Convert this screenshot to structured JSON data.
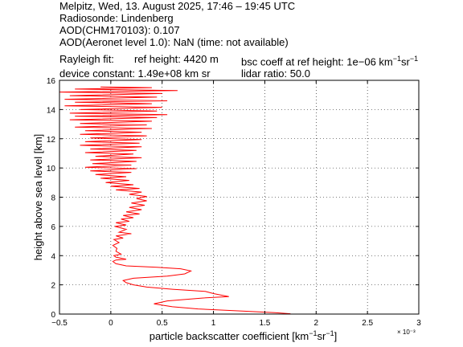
{
  "header": {
    "line1": "Melpitz, Wed, 13. August 2025, 17:46 – 19:45 UTC",
    "line2": "Radiosonde: Lindenberg",
    "line3": "AOD(CHM170103): 0.107",
    "line4": "AOD(Aeronet level 1.0): NaN   (time: not available)",
    "rayleigh_label": "Rayleigh fit:",
    "ref_height": "ref height: 4420 m",
    "bsc_coeff_prefix": "bsc coeff at ref height: 1e−06 km",
    "bsc_coeff_sup1": "−1",
    "bsc_coeff_sr": "sr",
    "bsc_coeff_sup2": "−1",
    "device_constant": "device constant: 1.49e+08 km sr",
    "lidar_ratio": "lidar ratio: 50.0"
  },
  "chart_data": {
    "type": "line",
    "xlabel_prefix": "particle backscatter coefficient [km",
    "xlabel_sup1": "−1",
    "xlabel_sr": "sr",
    "xlabel_sup2": "−1",
    "xlabel_suffix": "]",
    "ylabel": "height above sea level [km]",
    "x_exponent_label": "× 10⁻³",
    "xlim": [
      -0.5,
      3
    ],
    "ylim": [
      0,
      16
    ],
    "xticks": [
      -0.5,
      0,
      0.5,
      1,
      1.5,
      2,
      2.5,
      3
    ],
    "xtick_labels": [
      "−0.5",
      "0",
      "0.5",
      "1",
      "1.5",
      "2",
      "2.5",
      "3"
    ],
    "yticks": [
      0,
      2,
      4,
      6,
      8,
      10,
      12,
      14,
      16
    ],
    "ytick_labels": [
      "0",
      "2",
      "4",
      "6",
      "8",
      "10",
      "12",
      "14",
      "16"
    ],
    "grid": true,
    "series": [
      {
        "color": "#ff0000",
        "points": [
          [
            1.75,
            0.02
          ],
          [
            1.6,
            0.1
          ],
          [
            1.3,
            0.2
          ],
          [
            0.85,
            0.35
          ],
          [
            0.6,
            0.5
          ],
          [
            0.42,
            0.7
          ],
          [
            0.55,
            0.9
          ],
          [
            0.9,
            1.1
          ],
          [
            1.15,
            1.2
          ],
          [
            1.0,
            1.4
          ],
          [
            0.92,
            1.55
          ],
          [
            0.6,
            1.7
          ],
          [
            0.35,
            1.85
          ],
          [
            0.22,
            2.0
          ],
          [
            0.15,
            2.15
          ],
          [
            0.12,
            2.3
          ],
          [
            0.22,
            2.45
          ],
          [
            0.55,
            2.6
          ],
          [
            0.72,
            2.75
          ],
          [
            0.78,
            2.95
          ],
          [
            0.68,
            3.1
          ],
          [
            0.45,
            3.2
          ],
          [
            0.15,
            3.3
          ],
          [
            0.05,
            3.45
          ],
          [
            0.02,
            3.6
          ],
          [
            0.05,
            3.7
          ],
          [
            0.15,
            3.75
          ],
          [
            0.05,
            3.9
          ],
          [
            0.03,
            4.0
          ],
          [
            0.1,
            4.1
          ],
          [
            0.05,
            4.3
          ],
          [
            0.06,
            4.5
          ],
          [
            0.02,
            4.7
          ],
          [
            0.08,
            4.9
          ],
          [
            0.03,
            5.1
          ],
          [
            0.12,
            5.2
          ],
          [
            0.05,
            5.35
          ],
          [
            0.2,
            5.5
          ],
          [
            0.08,
            5.6
          ],
          [
            0.15,
            5.8
          ],
          [
            0.04,
            6.0
          ],
          [
            0.15,
            6.1
          ],
          [
            0.05,
            6.25
          ],
          [
            0.18,
            6.35
          ],
          [
            0.1,
            6.5
          ],
          [
            0.22,
            6.6
          ],
          [
            0.12,
            6.75
          ],
          [
            0.28,
            6.85
          ],
          [
            0.15,
            7.0
          ],
          [
            0.3,
            7.15
          ],
          [
            0.18,
            7.3
          ],
          [
            0.33,
            7.45
          ],
          [
            0.2,
            7.6
          ],
          [
            0.35,
            7.75
          ],
          [
            0.25,
            7.9
          ],
          [
            0.35,
            8.05
          ],
          [
            0.18,
            8.2
          ],
          [
            0.3,
            8.35
          ],
          [
            0.05,
            8.5
          ],
          [
            0.28,
            8.6
          ],
          [
            0.0,
            8.75
          ],
          [
            0.22,
            8.85
          ],
          [
            -0.05,
            9.0
          ],
          [
            0.18,
            9.15
          ],
          [
            -0.1,
            9.3
          ],
          [
            0.15,
            9.4
          ],
          [
            -0.15,
            9.55
          ],
          [
            0.2,
            9.7
          ],
          [
            -0.2,
            9.8
          ],
          [
            0.25,
            9.95
          ],
          [
            -0.25,
            10.05
          ],
          [
            0.2,
            10.2
          ],
          [
            -0.18,
            10.3
          ],
          [
            0.25,
            10.45
          ],
          [
            -0.2,
            10.55
          ],
          [
            0.3,
            10.7
          ],
          [
            -0.15,
            10.8
          ],
          [
            0.22,
            10.95
          ],
          [
            -0.25,
            11.05
          ],
          [
            0.25,
            11.2
          ],
          [
            -0.2,
            11.3
          ],
          [
            0.3,
            11.45
          ],
          [
            -0.3,
            11.55
          ],
          [
            0.28,
            11.7
          ],
          [
            -0.25,
            11.8
          ],
          [
            0.3,
            11.95
          ],
          [
            -0.2,
            12.05
          ],
          [
            0.35,
            12.2
          ],
          [
            -0.3,
            12.3
          ],
          [
            0.3,
            12.45
          ],
          [
            -0.25,
            12.55
          ],
          [
            0.4,
            12.7
          ],
          [
            -0.35,
            12.8
          ],
          [
            0.35,
            12.95
          ],
          [
            -0.3,
            13.05
          ],
          [
            0.4,
            13.2
          ],
          [
            -0.4,
            13.3
          ],
          [
            0.45,
            13.45
          ],
          [
            -0.35,
            13.55
          ],
          [
            0.55,
            13.65
          ],
          [
            -0.4,
            13.75
          ],
          [
            0.45,
            13.9
          ],
          [
            -0.3,
            14.0
          ],
          [
            0.5,
            14.15
          ],
          [
            -0.45,
            14.25
          ],
          [
            0.4,
            14.4
          ],
          [
            -0.35,
            14.5
          ],
          [
            0.55,
            14.6
          ],
          [
            -0.45,
            14.7
          ],
          [
            0.45,
            14.85
          ],
          [
            -0.4,
            14.95
          ],
          [
            0.5,
            15.1
          ],
          [
            -0.5,
            15.2
          ],
          [
            0.65,
            15.3
          ],
          [
            -0.35,
            15.4
          ],
          [
            0.4,
            15.5
          ],
          [
            -0.1,
            15.55
          ]
        ]
      }
    ]
  }
}
